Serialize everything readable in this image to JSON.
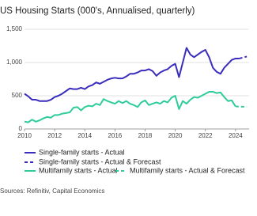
{
  "chart_data": {
    "type": "line",
    "title": "US Housing Starts (000's, Annualised, quarterly)",
    "source": "Sources: Refinitiv, Capital Economics",
    "xlim": [
      2010,
      2024.9
    ],
    "xticks": [
      2010,
      2012,
      2014,
      2016,
      2018,
      2020,
      2022,
      2024
    ],
    "ylim": [
      0,
      1500
    ],
    "yticks": [
      0,
      500,
      {
        "value": 1000,
        "label": "1,000"
      },
      {
        "value": 1500,
        "label": "1,500"
      }
    ],
    "grid": true,
    "series": [
      {
        "name": "Single-family starts - Actual",
        "color": "#3a2dbd",
        "dash": false,
        "x": [
          2010,
          2010.25,
          2010.5,
          2010.75,
          2011,
          2011.25,
          2011.5,
          2011.75,
          2012,
          2012.25,
          2012.5,
          2012.75,
          2013,
          2013.25,
          2013.5,
          2013.75,
          2014,
          2014.25,
          2014.5,
          2014.75,
          2015,
          2015.25,
          2015.5,
          2015.75,
          2016,
          2016.25,
          2016.5,
          2016.75,
          2017,
          2017.25,
          2017.5,
          2017.75,
          2018,
          2018.25,
          2018.5,
          2018.75,
          2019,
          2019.25,
          2019.5,
          2019.75,
          2020,
          2020.25,
          2020.5,
          2020.75,
          2021,
          2021.25,
          2021.5,
          2021.75,
          2022,
          2022.25,
          2022.5,
          2022.75,
          2023,
          2023.25,
          2023.5,
          2023.75,
          2024,
          2024.25
        ],
        "values": [
          530,
          490,
          440,
          440,
          420,
          420,
          420,
          440,
          480,
          500,
          530,
          570,
          610,
          600,
          600,
          620,
          600,
          640,
          660,
          700,
          680,
          710,
          740,
          760,
          770,
          760,
          760,
          790,
          830,
          830,
          850,
          880,
          880,
          900,
          870,
          800,
          850,
          880,
          900,
          950,
          980,
          780,
          1000,
          1220,
          1120,
          1080,
          1120,
          1160,
          1190,
          1080,
          920,
          860,
          830,
          920,
          980,
          1040,
          1060,
          1060
        ]
      },
      {
        "name": "Single-family starts - Actual & Forecast",
        "color": "#3a2dbd",
        "dash": true,
        "x": [
          2024.25,
          2024.5,
          2024.75
        ],
        "values": [
          1060,
          1075,
          1090
        ]
      },
      {
        "name": "Multifamily starts - Actual",
        "color": "#2ecc9b",
        "dash": false,
        "x": [
          2010,
          2010.25,
          2010.5,
          2010.75,
          2011,
          2011.25,
          2011.5,
          2011.75,
          2012,
          2012.25,
          2012.5,
          2012.75,
          2013,
          2013.25,
          2013.5,
          2013.75,
          2014,
          2014.25,
          2014.5,
          2014.75,
          2015,
          2015.25,
          2015.5,
          2015.75,
          2016,
          2016.25,
          2016.5,
          2016.75,
          2017,
          2017.25,
          2017.5,
          2017.75,
          2018,
          2018.25,
          2018.5,
          2018.75,
          2019,
          2019.25,
          2019.5,
          2019.75,
          2020,
          2020.25,
          2020.5,
          2020.75,
          2021,
          2021.25,
          2021.5,
          2021.75,
          2022,
          2022.25,
          2022.5,
          2022.75,
          2023,
          2023.25,
          2023.5,
          2023.75,
          2024
        ],
        "values": [
          110,
          100,
          140,
          110,
          130,
          160,
          180,
          170,
          210,
          210,
          230,
          240,
          250,
          320,
          330,
          280,
          330,
          350,
          340,
          380,
          360,
          450,
          420,
          400,
          380,
          420,
          390,
          420,
          380,
          360,
          330,
          400,
          430,
          360,
          380,
          400,
          380,
          420,
          400,
          470,
          500,
          300,
          420,
          380,
          440,
          480,
          470,
          500,
          530,
          560,
          560,
          540,
          550,
          480,
          420,
          430,
          340
        ]
      },
      {
        "name": "Multifamily starts - Actual & Forecast",
        "color": "#2ecc9b",
        "dash": true,
        "x": [
          2024,
          2024.25,
          2024.5,
          2024.75
        ],
        "values": [
          340,
          335,
          335,
          335
        ]
      }
    ]
  }
}
